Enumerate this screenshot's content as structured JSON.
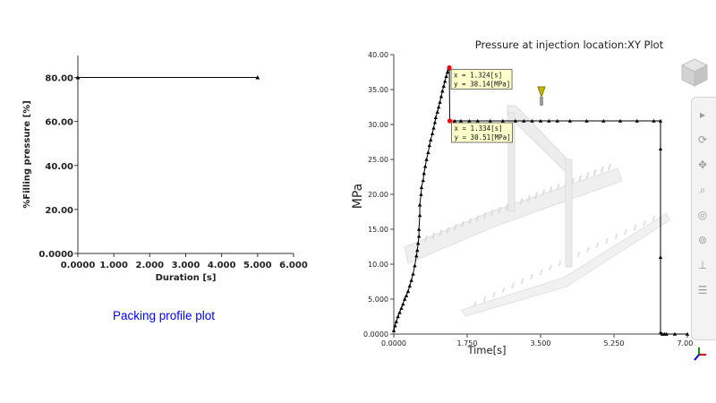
{
  "left_panel": {
    "caption": "Packing profile plot",
    "caption_color": "#0000ff"
  },
  "toolbar": {
    "icons": [
      "pointer-icon",
      "rotate-icon",
      "pan-icon",
      "zoom-icon",
      "fit-icon",
      "measure-icon",
      "layers-icon",
      "list-icon"
    ]
  },
  "chart_data": [
    {
      "type": "line",
      "title": "",
      "xlabel": "Duration [s]",
      "ylabel": "%Filling pressure [%]",
      "xlim": [
        0,
        6
      ],
      "ylim": [
        0,
        90
      ],
      "x_ticks": [
        "0.0000",
        "1.000",
        "2.000",
        "3.000",
        "4.000",
        "5.000",
        "6.000"
      ],
      "y_ticks": [
        "0.0000",
        "20.00",
        "40.00",
        "60.00",
        "80.00"
      ],
      "series": [
        {
          "x": [
            0,
            5.0
          ],
          "y": [
            80,
            80
          ]
        }
      ],
      "grid": false,
      "color": "#000000"
    },
    {
      "type": "line",
      "title": "Pressure at injection location:XY Plot",
      "xlabel": "Time[s]",
      "ylabel": "MPa",
      "xlim": [
        0,
        7.0
      ],
      "ylim": [
        0,
        40.0
      ],
      "x_ticks": [
        "0.0000",
        "1.750",
        "3.500",
        "5.250",
        "7.000"
      ],
      "y_ticks": [
        "0.0000",
        "5.000",
        "10.00",
        "15.00",
        "20.00",
        "25.00",
        "30.00",
        "35.00",
        "40.00"
      ],
      "series": [
        {
          "x": [
            0,
            0.03,
            0.06,
            0.1,
            0.14,
            0.18,
            0.22,
            0.26,
            0.3,
            0.34,
            0.38,
            0.42,
            0.46,
            0.5,
            0.54,
            0.56,
            0.58,
            0.6,
            0.6,
            0.62,
            0.62,
            0.65,
            0.66,
            0.7,
            0.72,
            0.75,
            0.78,
            0.82,
            0.85,
            0.88,
            0.92,
            0.95,
            0.98,
            1.0,
            1.04,
            1.07,
            1.1,
            1.13,
            1.16,
            1.19,
            1.22,
            1.25,
            1.28,
            1.31,
            1.324,
            1.334,
            1.45,
            1.6,
            1.8,
            2.0,
            2.3,
            2.6,
            2.9,
            3.1,
            3.3,
            3.5,
            3.7,
            3.9,
            4.2,
            4.6,
            5.0,
            5.4,
            5.8,
            6.2,
            6.36,
            6.36,
            6.36,
            6.36,
            6.4,
            6.45,
            6.5,
            6.7,
            7.0
          ],
          "y": [
            0.5,
            1.2,
            1.8,
            2.5,
            3.1,
            3.7,
            4.3,
            5.0,
            5.5,
            6.1,
            6.9,
            7.7,
            8.6,
            9.8,
            11.2,
            12.0,
            13.0,
            14.0,
            15.0,
            17.0,
            18.5,
            20.0,
            21.0,
            22.0,
            23.0,
            24.0,
            25.0,
            26.0,
            27.0,
            27.8,
            28.7,
            29.5,
            30.3,
            31.0,
            31.8,
            32.5,
            33.2,
            34.0,
            34.8,
            35.5,
            36.2,
            36.9,
            37.5,
            38.0,
            38.14,
            30.51,
            30.51,
            30.51,
            30.51,
            30.51,
            30.51,
            30.51,
            30.51,
            30.51,
            30.51,
            30.51,
            30.51,
            30.51,
            30.51,
            30.51,
            30.51,
            30.51,
            30.51,
            30.51,
            30.51,
            26.5,
            11.0,
            0.2,
            0.0,
            0.0,
            0.0,
            0.0,
            0.0
          ]
        }
      ],
      "annotations": [
        {
          "x": 1.324,
          "y": 38.14,
          "lines": [
            "x = 1.324[s]",
            "y = 38.14[MPa]"
          ]
        },
        {
          "x": 1.334,
          "y": 30.51,
          "lines": [
            "x = 1.334[s]",
            "y = 30.51[MPa]"
          ]
        }
      ],
      "annotation_bg": "#ffffcc",
      "marker_color": "#000000",
      "highlight_color": "#ff0000",
      "grid": false
    }
  ]
}
